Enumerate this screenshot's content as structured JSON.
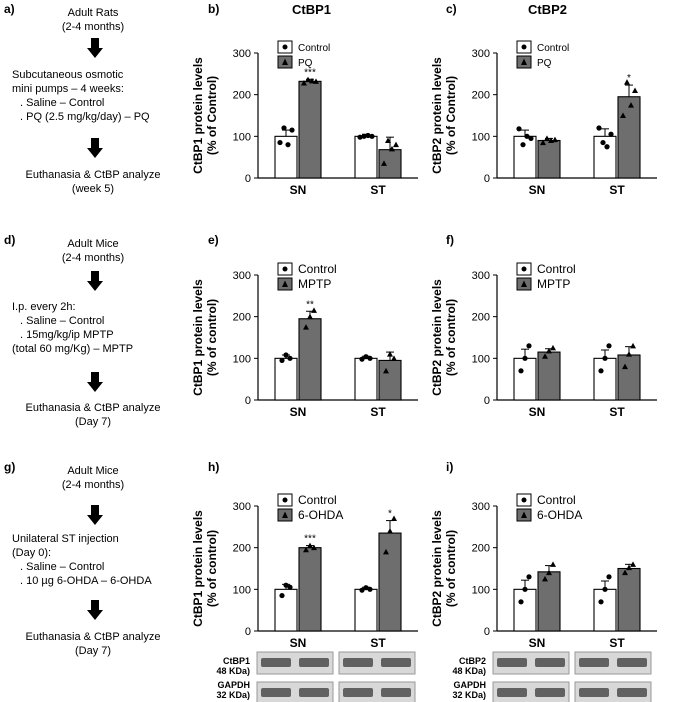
{
  "panel_labels": {
    "a": "a)",
    "b": "b)",
    "c": "c)",
    "d": "d)",
    "e": "e)",
    "f": "f)",
    "g": "g)",
    "h": "h)",
    "i": "i)"
  },
  "column_titles": {
    "ctbp1": "CtBP1",
    "ctbp2": "CtBP2"
  },
  "flow_a": {
    "title1": "Adult Rats",
    "title2": "(2-4 months)",
    "step2_l1": "Subcutaneous osmotic",
    "step2_l2": "mini pumps – 4 weeks:",
    "step2_l3": ". Saline – Control",
    "step2_l4": ". PQ (2.5 mg/kg/day) – PQ",
    "end1": "Euthanasia & CtBP analyze",
    "end2": "(week 5)"
  },
  "flow_d": {
    "title1": "Adult Mice",
    "title2": "(2-4 months)",
    "step2_l1": "I.p. every 2h:",
    "step2_l2": ". Saline – Control",
    "step2_l3": ". 15mg/kg/ip MPTP",
    "step2_l4": "(total 60 mg/Kg) – MPTP",
    "end1": "Euthanasia & CtBP analyze",
    "end2": "(Day 7)"
  },
  "flow_g": {
    "title1": "Adult Mice",
    "title2": "(2-4 months)",
    "step2_l1": "Unilateral ST injection",
    "step2_l2": "(Day 0):",
    "step2_l3": ". Saline – Control",
    "step2_l4": ". 10 µg 6-OHDA – 6-OHDA",
    "end1": "Euthanasia & CtBP analyze",
    "end2": "(Day 7)"
  },
  "blots": {
    "h_l1": "CtBP1",
    "h_l2": "48 KDa)",
    "h_l3": "GAPDH",
    "h_l4": "32 KDa)",
    "i_l1": "CtBP2",
    "i_l2": "48 KDa)",
    "i_l3": "GAPDH",
    "i_l4": "32 KDa)"
  },
  "colors": {
    "control_fill": "#ffffff",
    "treat_fill": "#6e6e6e",
    "axis": "#000000",
    "blot_bg": "#d8d8d8",
    "band": "#3a3a3a"
  },
  "chart_data": [
    {
      "id": "b",
      "type": "bar",
      "ylabel": "CtBP1 protein levels",
      "ylabel2": "(% of Control)",
      "categories": [
        "SN",
        "ST"
      ],
      "yticks": [
        "0",
        "100",
        "200",
        "300"
      ],
      "ylim": [
        0,
        300
      ],
      "series": [
        {
          "name": "Control",
          "values": [
            100,
            100
          ],
          "err": [
            15,
            5
          ]
        },
        {
          "name": "PQ",
          "values": [
            232,
            68
          ],
          "err": [
            5,
            30
          ]
        }
      ],
      "annotations": [
        "",
        "",
        "***",
        ""
      ],
      "points": [
        [
          [
            85,
            120,
            80,
            115
          ],
          [
            98,
            100,
            102,
            100
          ]
        ],
        [
          [
            228,
            236,
            233,
            232
          ],
          [
            35,
            90,
            70,
            80
          ]
        ]
      ]
    },
    {
      "id": "c",
      "type": "bar",
      "ylabel": "CtBP2 protein levels",
      "ylabel2": "(% of Control)",
      "categories": [
        "SN",
        "ST"
      ],
      "yticks": [
        "0",
        "100",
        "200",
        "300"
      ],
      "ylim": [
        0,
        300
      ],
      "series": [
        {
          "name": "Control",
          "values": [
            100,
            100
          ],
          "err": [
            15,
            18
          ]
        },
        {
          "name": "PQ",
          "values": [
            90,
            195
          ],
          "err": [
            5,
            28
          ]
        }
      ],
      "annotations": [
        "",
        "",
        "",
        "*"
      ],
      "points": [
        [
          [
            118,
            80,
            100,
            95
          ],
          [
            120,
            85,
            75,
            105
          ]
        ],
        [
          [
            85,
            95,
            90,
            92
          ],
          [
            150,
            230,
            175,
            210
          ]
        ]
      ]
    },
    {
      "id": "e",
      "type": "bar",
      "ylabel": "CtBP1 protein levels",
      "ylabel2": "(% of control)",
      "categories": [
        "SN",
        "ST"
      ],
      "yticks": [
        "0",
        "100",
        "200",
        "300"
      ],
      "ylim": [
        0,
        300
      ],
      "series": [
        {
          "name": "Control",
          "values": [
            100,
            100
          ],
          "err": [
            8,
            5
          ]
        },
        {
          "name": "MPTP",
          "values": [
            195,
            95
          ],
          "err": [
            18,
            20
          ]
        }
      ],
      "annotations": [
        "",
        "",
        "**",
        ""
      ],
      "points": [
        [
          [
            95,
            108,
            100
          ],
          [
            98,
            104,
            100
          ]
        ],
        [
          [
            175,
            200,
            215
          ],
          [
            70,
            110,
            100
          ]
        ]
      ]
    },
    {
      "id": "f",
      "type": "bar",
      "ylabel": "CtBP2 protein levels",
      "ylabel2": "(% of control)",
      "categories": [
        "SN",
        "ST"
      ],
      "yticks": [
        "0",
        "100",
        "200",
        "300"
      ],
      "ylim": [
        0,
        300
      ],
      "series": [
        {
          "name": "Control",
          "values": [
            100,
            100
          ],
          "err": [
            22,
            20
          ]
        },
        {
          "name": "MPTP",
          "values": [
            115,
            108
          ],
          "err": [
            8,
            20
          ]
        }
      ],
      "annotations": [
        "",
        "",
        "",
        ""
      ],
      "points": [
        [
          [
            70,
            100,
            130
          ],
          [
            70,
            100,
            130
          ]
        ],
        [
          [
            105,
            118,
            125
          ],
          [
            80,
            110,
            130
          ]
        ]
      ]
    },
    {
      "id": "h",
      "type": "bar",
      "ylabel": "CtBP1 protein levels",
      "ylabel2": "(% of control)",
      "categories": [
        "SN",
        "ST"
      ],
      "yticks": [
        "0",
        "100",
        "200",
        "300"
      ],
      "ylim": [
        0,
        300
      ],
      "series": [
        {
          "name": "Control",
          "values": [
            100,
            100
          ],
          "err": [
            12,
            5
          ]
        },
        {
          "name": "6-OHDA",
          "values": [
            200,
            235
          ],
          "err": [
            5,
            30
          ]
        }
      ],
      "annotations": [
        "",
        "",
        "***",
        "*"
      ],
      "points": [
        [
          [
            85,
            110,
            105
          ],
          [
            98,
            104,
            100
          ]
        ],
        [
          [
            195,
            205,
            200
          ],
          [
            190,
            240,
            270
          ]
        ]
      ]
    },
    {
      "id": "i",
      "type": "bar",
      "ylabel": "CtBP2 protein levels",
      "ylabel2": "(% of control)",
      "categories": [
        "SN",
        "ST"
      ],
      "yticks": [
        "0",
        "100",
        "200",
        "300"
      ],
      "ylim": [
        0,
        300
      ],
      "series": [
        {
          "name": "Control",
          "values": [
            100,
            100
          ],
          "err": [
            22,
            20
          ]
        },
        {
          "name": "6-OHDA",
          "values": [
            142,
            150
          ],
          "err": [
            15,
            10
          ]
        }
      ],
      "annotations": [
        "",
        "",
        "",
        ""
      ],
      "points": [
        [
          [
            70,
            100,
            130
          ],
          [
            70,
            100,
            130
          ]
        ],
        [
          [
            125,
            140,
            160
          ],
          [
            140,
            152,
            160
          ]
        ]
      ]
    }
  ]
}
